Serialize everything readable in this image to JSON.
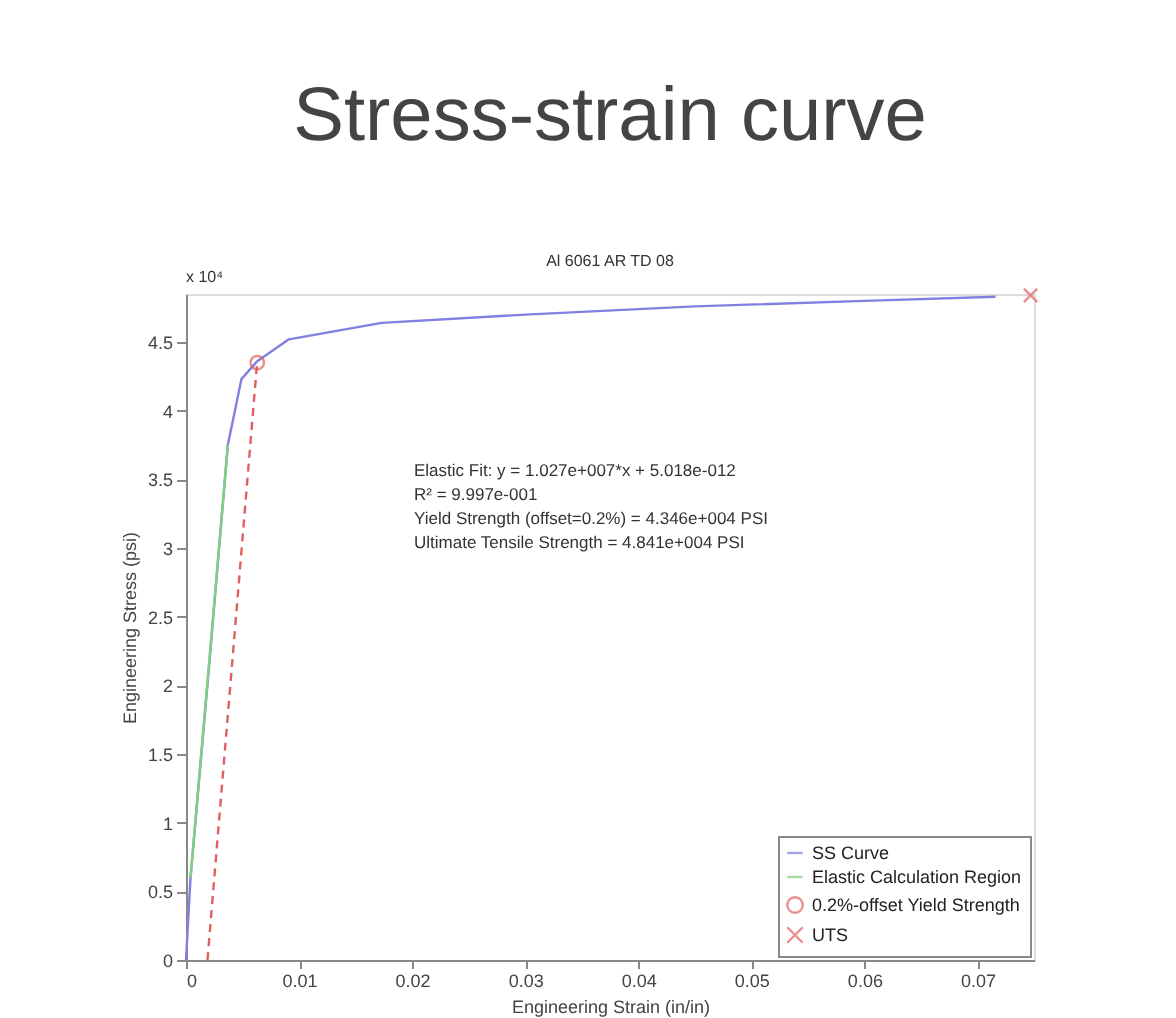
{
  "chart_data": {
    "type": "line",
    "title": "Stress-strain curve",
    "subtitle": "Al 6061 AR TD 08",
    "xlabel": "Engineering Strain (in/in)",
    "ylabel": "Engineering Stress (psi)",
    "xlim": [
      0,
      0.075
    ],
    "ylim": [
      0,
      4.85
    ],
    "xticks": [
      0,
      0.01,
      0.02,
      0.03,
      0.04,
      0.05,
      0.06,
      0.07
    ],
    "yticks": [
      0,
      0.5,
      1,
      1.5,
      2,
      2.5,
      3,
      3.5,
      4,
      4.5
    ],
    "grid": false,
    "legend": "bottom right",
    "annotations": [
      "x 10⁴",
      "Elastic Fit: y = 1.027e+007*x + 5.018e-012",
      "R² = 9.997e-001",
      "Yield Strength (offset=0.2%) = 4.346e+004 PSI",
      "Ultimate Tensile Strength = 4.841e+004 PSI"
    ],
    "series": [
      {
        "name": "SS Curve",
        "color": "#8080e0",
        "marker": "none",
        "line_style": "solid",
        "x": [
          0,
          0.0004,
          0.002,
          0.0037,
          0.0049,
          0.0063,
          0.0091,
          0.0173,
          0.03,
          0.045,
          0.06,
          0.0716
        ],
        "values": [
          0,
          0.6,
          2.1,
          3.75,
          4.23,
          4.36,
          4.52,
          4.64,
          4.7,
          4.76,
          4.8,
          4.83
        ]
      },
      {
        "name": "Elastic Calculation Region",
        "color": "#80d080",
        "marker": "none",
        "line_style": "solid",
        "x": [
          0.0004,
          0.0037
        ],
        "values": [
          0.6,
          3.75
        ]
      },
      {
        "color": "#e06060",
        "marker": "none",
        "line_style": "dashed",
        "x": [
          0.0019,
          0.0063
        ],
        "values": [
          0,
          4.36
        ]
      },
      {
        "name": "0.2%-offset Yield Strength",
        "type": "scatter",
        "color": "#e06060",
        "marker": "circle",
        "x": [
          0.0063
        ],
        "values": [
          4.35
        ]
      },
      {
        "name": "UTS",
        "type": "scatter",
        "color": "#e06060",
        "marker": "cross",
        "x": [
          0.0747
        ],
        "values": [
          4.84
        ]
      }
    ]
  }
}
